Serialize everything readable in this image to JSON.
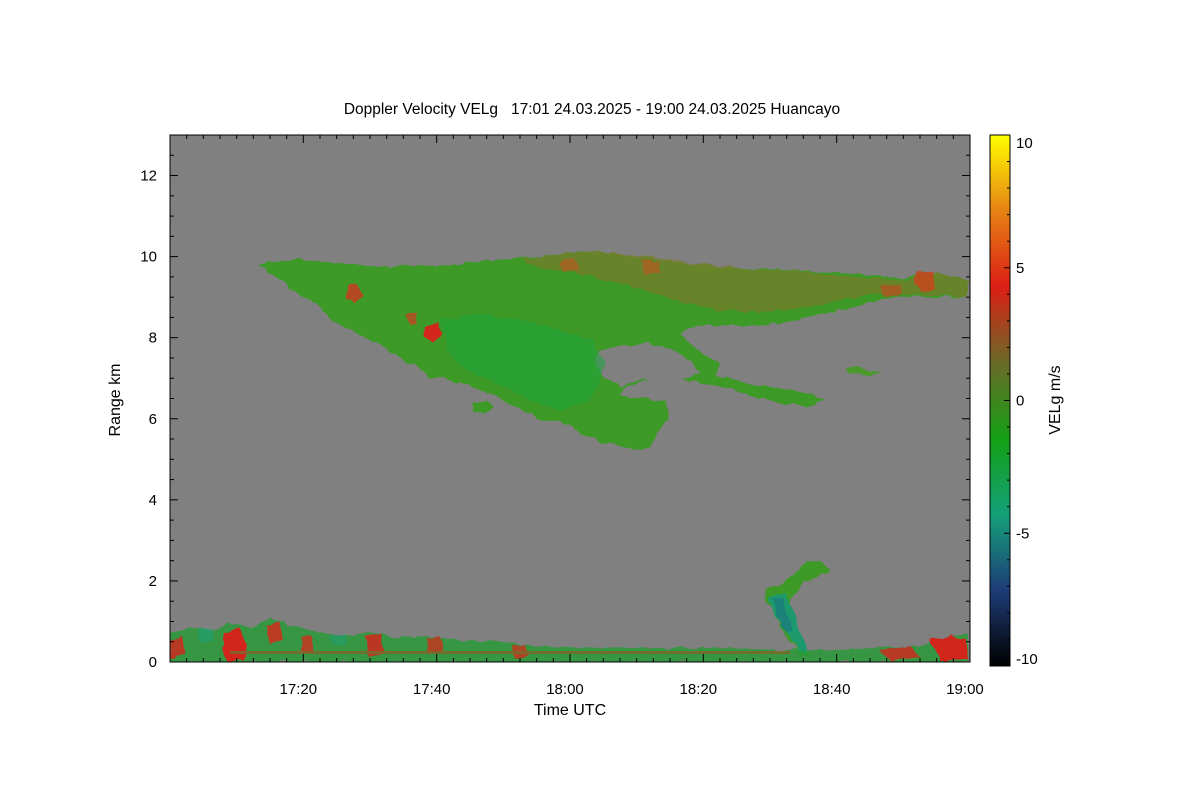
{
  "chart_data": {
    "type": "heatmap",
    "title": "Doppler Velocity VELg   17:01 24.03.2025 - 19:00 24.03.2025 Huancayo",
    "xlabel": "Time UTC",
    "ylabel": "Range km",
    "colorbar_label": "VELg m/s",
    "x_range_minutes": [
      0,
      120
    ],
    "x_ticks": [
      {
        "value": 20,
        "label": "17:20"
      },
      {
        "value": 40,
        "label": "17:40"
      },
      {
        "value": 60,
        "label": "18:00"
      },
      {
        "value": 80,
        "label": "18:20"
      },
      {
        "value": 100,
        "label": "18:40"
      },
      {
        "value": 120,
        "label": "19:00"
      }
    ],
    "y_range": [
      0,
      13
    ],
    "y_ticks": [
      0,
      2,
      4,
      6,
      8,
      10,
      12
    ],
    "colorbar_range": [
      -10,
      10
    ],
    "colorbar_ticks": [
      -10,
      -5,
      0,
      5,
      10
    ],
    "colorbar_stops": [
      "#000000",
      "#1e3c78",
      "#14a078",
      "#14a014",
      "#6a6a28",
      "#dc1e14",
      "#e68214",
      "#ffff00"
    ],
    "background_color": "#808080",
    "features": [
      {
        "name": "cirrus-layer",
        "velocity": -1,
        "range_km": [
          5.3,
          10.1
        ],
        "time_minutes": [
          13,
          120
        ]
      },
      {
        "name": "boundary-layer-echo",
        "velocity": 1,
        "range_km": [
          0,
          1.3
        ],
        "time_minutes": [
          0,
          120
        ]
      },
      {
        "name": "low-cloud-fallstreak",
        "velocity": -3,
        "range_km": [
          0.2,
          2.5
        ],
        "time_minutes": [
          90,
          99
        ]
      }
    ]
  }
}
